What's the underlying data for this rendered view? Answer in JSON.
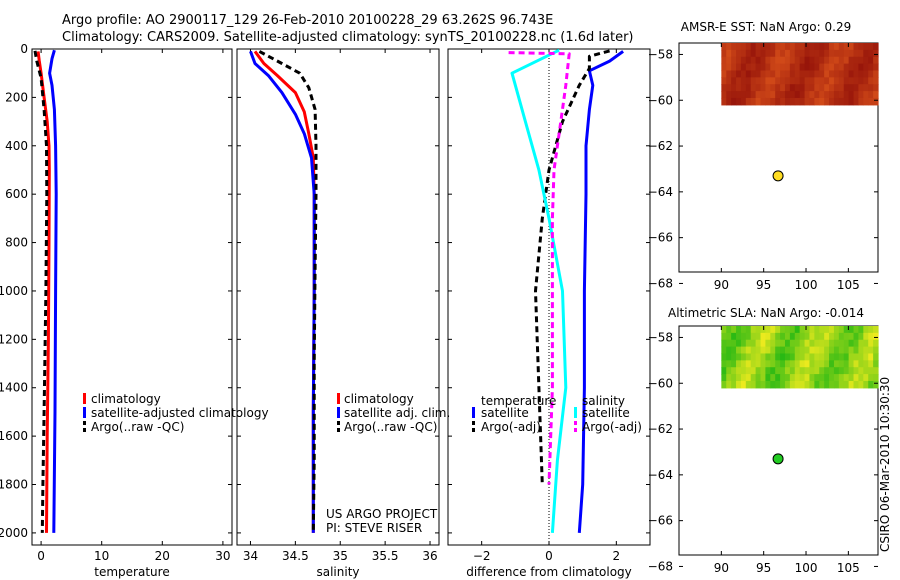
{
  "header": {
    "title_line1": "Argo profile: AO 2900117_129 26-Feb-2010 20100228_29 63.262S 96.743E",
    "title_line2": "Climatology: CARS2009. Satellite-adjusted climatology: synTS_20100228.nc (1.6d later)"
  },
  "colors": {
    "red": "#ff0000",
    "blue": "#0000ff",
    "black": "#000000",
    "cyan": "#00ffff",
    "magenta": "#ff00ff",
    "marker_yellow": "#ffdd22",
    "marker_green": "#22cc22"
  },
  "chart_data": [
    {
      "type": "line",
      "name": "temperature",
      "xlabel": "temperature",
      "xlim": [
        -1.5,
        31.5
      ],
      "ylim": [
        2050,
        0
      ],
      "xticks": [
        0,
        10,
        20,
        30
      ],
      "yticks": [
        0,
        200,
        400,
        600,
        800,
        1000,
        1200,
        1400,
        1600,
        1800,
        2000
      ],
      "legend": [
        "climatology",
        "satellite-adjusted climatology",
        "Argo(..raw -QC)"
      ],
      "series": [
        {
          "name": "climatology",
          "color": "red",
          "dash": "",
          "points": [
            [
              -0.5,
              10
            ],
            [
              -0.3,
              50
            ],
            [
              0,
              100
            ],
            [
              0.5,
              200
            ],
            [
              1,
              300
            ],
            [
              1.3,
              400
            ],
            [
              1.35,
              500
            ],
            [
              1.3,
              800
            ],
            [
              1.2,
              1200
            ],
            [
              1.0,
              1600
            ],
            [
              0.9,
              2000
            ]
          ]
        },
        {
          "name": "satellite-adjusted climatology",
          "color": "blue",
          "dash": "",
          "points": [
            [
              2.2,
              5
            ],
            [
              1.8,
              40
            ],
            [
              1.4,
              100
            ],
            [
              1.8,
              150
            ],
            [
              2.2,
              250
            ],
            [
              2.4,
              400
            ],
            [
              2.5,
              600
            ],
            [
              2.4,
              1000
            ],
            [
              2.3,
              1500
            ],
            [
              2.1,
              2000
            ]
          ]
        },
        {
          "name": "Argo(..raw -QC)",
          "color": "black",
          "dash": "6,4",
          "points": [
            [
              -1.0,
              8
            ],
            [
              -0.7,
              50
            ],
            [
              0.0,
              120
            ],
            [
              0.5,
              250
            ],
            [
              0.9,
              400
            ],
            [
              0.95,
              600
            ],
            [
              0.8,
              1000
            ],
            [
              0.5,
              1500
            ],
            [
              0.3,
              1800
            ],
            [
              0.2,
              2000
            ]
          ]
        }
      ]
    },
    {
      "type": "line",
      "name": "salinity",
      "xlabel": "salinity",
      "xlim": [
        33.85,
        36.1
      ],
      "ylim": [
        2050,
        0
      ],
      "xticks": [
        34,
        34.5,
        35,
        35.5,
        36
      ],
      "xticklabels": [
        "34",
        "34.5",
        "35",
        "35.5",
        "36"
      ],
      "yticks": [
        0,
        200,
        400,
        600,
        800,
        1000,
        1200,
        1400,
        1600,
        1800,
        2000
      ],
      "legend": [
        "climatology",
        "satellite adj. clim.",
        "Argo(..raw -QC)"
      ],
      "annotation": [
        "US ARGO PROJECT",
        "PI: STEVE RISER"
      ],
      "series": [
        {
          "name": "climatology",
          "color": "red",
          "dash": "",
          "points": [
            [
              34.05,
              10
            ],
            [
              34.15,
              60
            ],
            [
              34.3,
              110
            ],
            [
              34.5,
              180
            ],
            [
              34.6,
              260
            ],
            [
              34.65,
              350
            ],
            [
              34.7,
              450
            ],
            [
              34.71,
              600
            ],
            [
              34.71,
              1000
            ],
            [
              34.7,
              1500
            ],
            [
              34.7,
              2000
            ]
          ]
        },
        {
          "name": "satellite adj. clim.",
          "color": "blue",
          "dash": "",
          "points": [
            [
              34.0,
              10
            ],
            [
              34.05,
              60
            ],
            [
              34.2,
              110
            ],
            [
              34.35,
              180
            ],
            [
              34.5,
              270
            ],
            [
              34.6,
              350
            ],
            [
              34.68,
              450
            ],
            [
              34.71,
              600
            ],
            [
              34.71,
              1000
            ],
            [
              34.7,
              1500
            ],
            [
              34.7,
              2000
            ]
          ]
        },
        {
          "name": "Argo(..raw -QC)",
          "color": "black",
          "dash": "6,4",
          "points": [
            [
              34.1,
              10
            ],
            [
              34.35,
              60
            ],
            [
              34.55,
              100
            ],
            [
              34.65,
              160
            ],
            [
              34.72,
              250
            ],
            [
              34.73,
              400
            ],
            [
              34.73,
              600
            ],
            [
              34.72,
              900
            ],
            [
              34.71,
              1300
            ],
            [
              34.71,
              1700
            ],
            [
              34.7,
              2000
            ]
          ]
        }
      ]
    },
    {
      "type": "line",
      "name": "difference",
      "xlabel": "difference from climatology",
      "xlim": [
        -3,
        3
      ],
      "ylim": [
        2050,
        0
      ],
      "xticks": [
        -2,
        0,
        2
      ],
      "xticklabels": [
        "−2",
        "0",
        "2"
      ],
      "yticks": [
        0,
        200,
        400,
        600,
        800,
        1000,
        1200,
        1400,
        1600,
        1800,
        2000
      ],
      "legend_temperature": {
        "heading": "temperature",
        "items": [
          "satellite",
          "Argo(-adj)"
        ]
      },
      "legend_salinity": {
        "heading": "salinity",
        "items": [
          "satellite",
          "Argo(-adj)"
        ]
      },
      "series": [
        {
          "name": "temperature satellite",
          "color": "blue",
          "dash": "",
          "points": [
            [
              2.2,
              10
            ],
            [
              1.8,
              50
            ],
            [
              1.2,
              90
            ],
            [
              1.3,
              150
            ],
            [
              1.2,
              250
            ],
            [
              1.1,
              400
            ],
            [
              1.1,
              600
            ],
            [
              1.05,
              1000
            ],
            [
              1.05,
              1400
            ],
            [
              1.0,
              1800
            ],
            [
              0.9,
              2000
            ]
          ]
        },
        {
          "name": "temperature Argo(-adj)",
          "color": "black",
          "dash": "6,4",
          "points": [
            [
              1.8,
              8
            ],
            [
              1.2,
              30
            ],
            [
              1.2,
              80
            ],
            [
              0.9,
              150
            ],
            [
              0.4,
              300
            ],
            [
              0.0,
              500
            ],
            [
              -0.2,
              700
            ],
            [
              -0.4,
              1000
            ],
            [
              -0.3,
              1400
            ],
            [
              -0.2,
              1800
            ]
          ]
        },
        {
          "name": "salinity satellite",
          "color": "cyan",
          "dash": "",
          "points": [
            [
              0.3,
              5
            ],
            [
              -1.1,
              100
            ],
            [
              -0.7,
              300
            ],
            [
              -0.3,
              500
            ],
            [
              0.0,
              700
            ],
            [
              0.4,
              1000
            ],
            [
              0.5,
              1400
            ],
            [
              0.25,
              1700
            ],
            [
              0.1,
              2000
            ]
          ]
        },
        {
          "name": "salinity Argo(-adj)",
          "color": "magenta",
          "dash": "6,4",
          "points": [
            [
              -1.2,
              15
            ],
            [
              0.6,
              20
            ],
            [
              0.5,
              150
            ],
            [
              0.35,
              300
            ],
            [
              0.15,
              500
            ],
            [
              0.1,
              700
            ],
            [
              0.1,
              1000
            ],
            [
              0.1,
              1400
            ],
            [
              0.0,
              1800
            ]
          ]
        }
      ]
    },
    {
      "type": "heatmap",
      "name": "sst-map",
      "title": "AMSR-E SST: NaN Argo: 0.29",
      "xlim": [
        85,
        108.5
      ],
      "ylim": [
        -67.5,
        -57.5
      ],
      "xticks": [
        90,
        95,
        100,
        105
      ],
      "yticks": [
        -58,
        -60,
        -62,
        -64,
        -66,
        -68
      ],
      "field_extent": {
        "lon": [
          90,
          108.5
        ],
        "lat": [
          -60.2,
          -57.5
        ]
      },
      "marker": {
        "lon": 96.7,
        "lat": -63.3,
        "color": "marker_yellow"
      }
    },
    {
      "type": "heatmap",
      "name": "sla-map",
      "title": "Altimetric SLA: NaN Argo: -0.014",
      "xlim": [
        85,
        108.5
      ],
      "ylim": [
        -67.5,
        -57.5
      ],
      "xticks": [
        90,
        95,
        100,
        105
      ],
      "yticks": [
        -58,
        -60,
        -62,
        -64,
        -66,
        -68
      ],
      "field_extent": {
        "lon": [
          90,
          108.5
        ],
        "lat": [
          -60.2,
          -57.5
        ]
      },
      "marker": {
        "lon": 96.7,
        "lat": -63.3,
        "color": "marker_green"
      }
    }
  ],
  "footer": {
    "side_label": "CSIRO 06-Mar-2010 10:30:30"
  }
}
